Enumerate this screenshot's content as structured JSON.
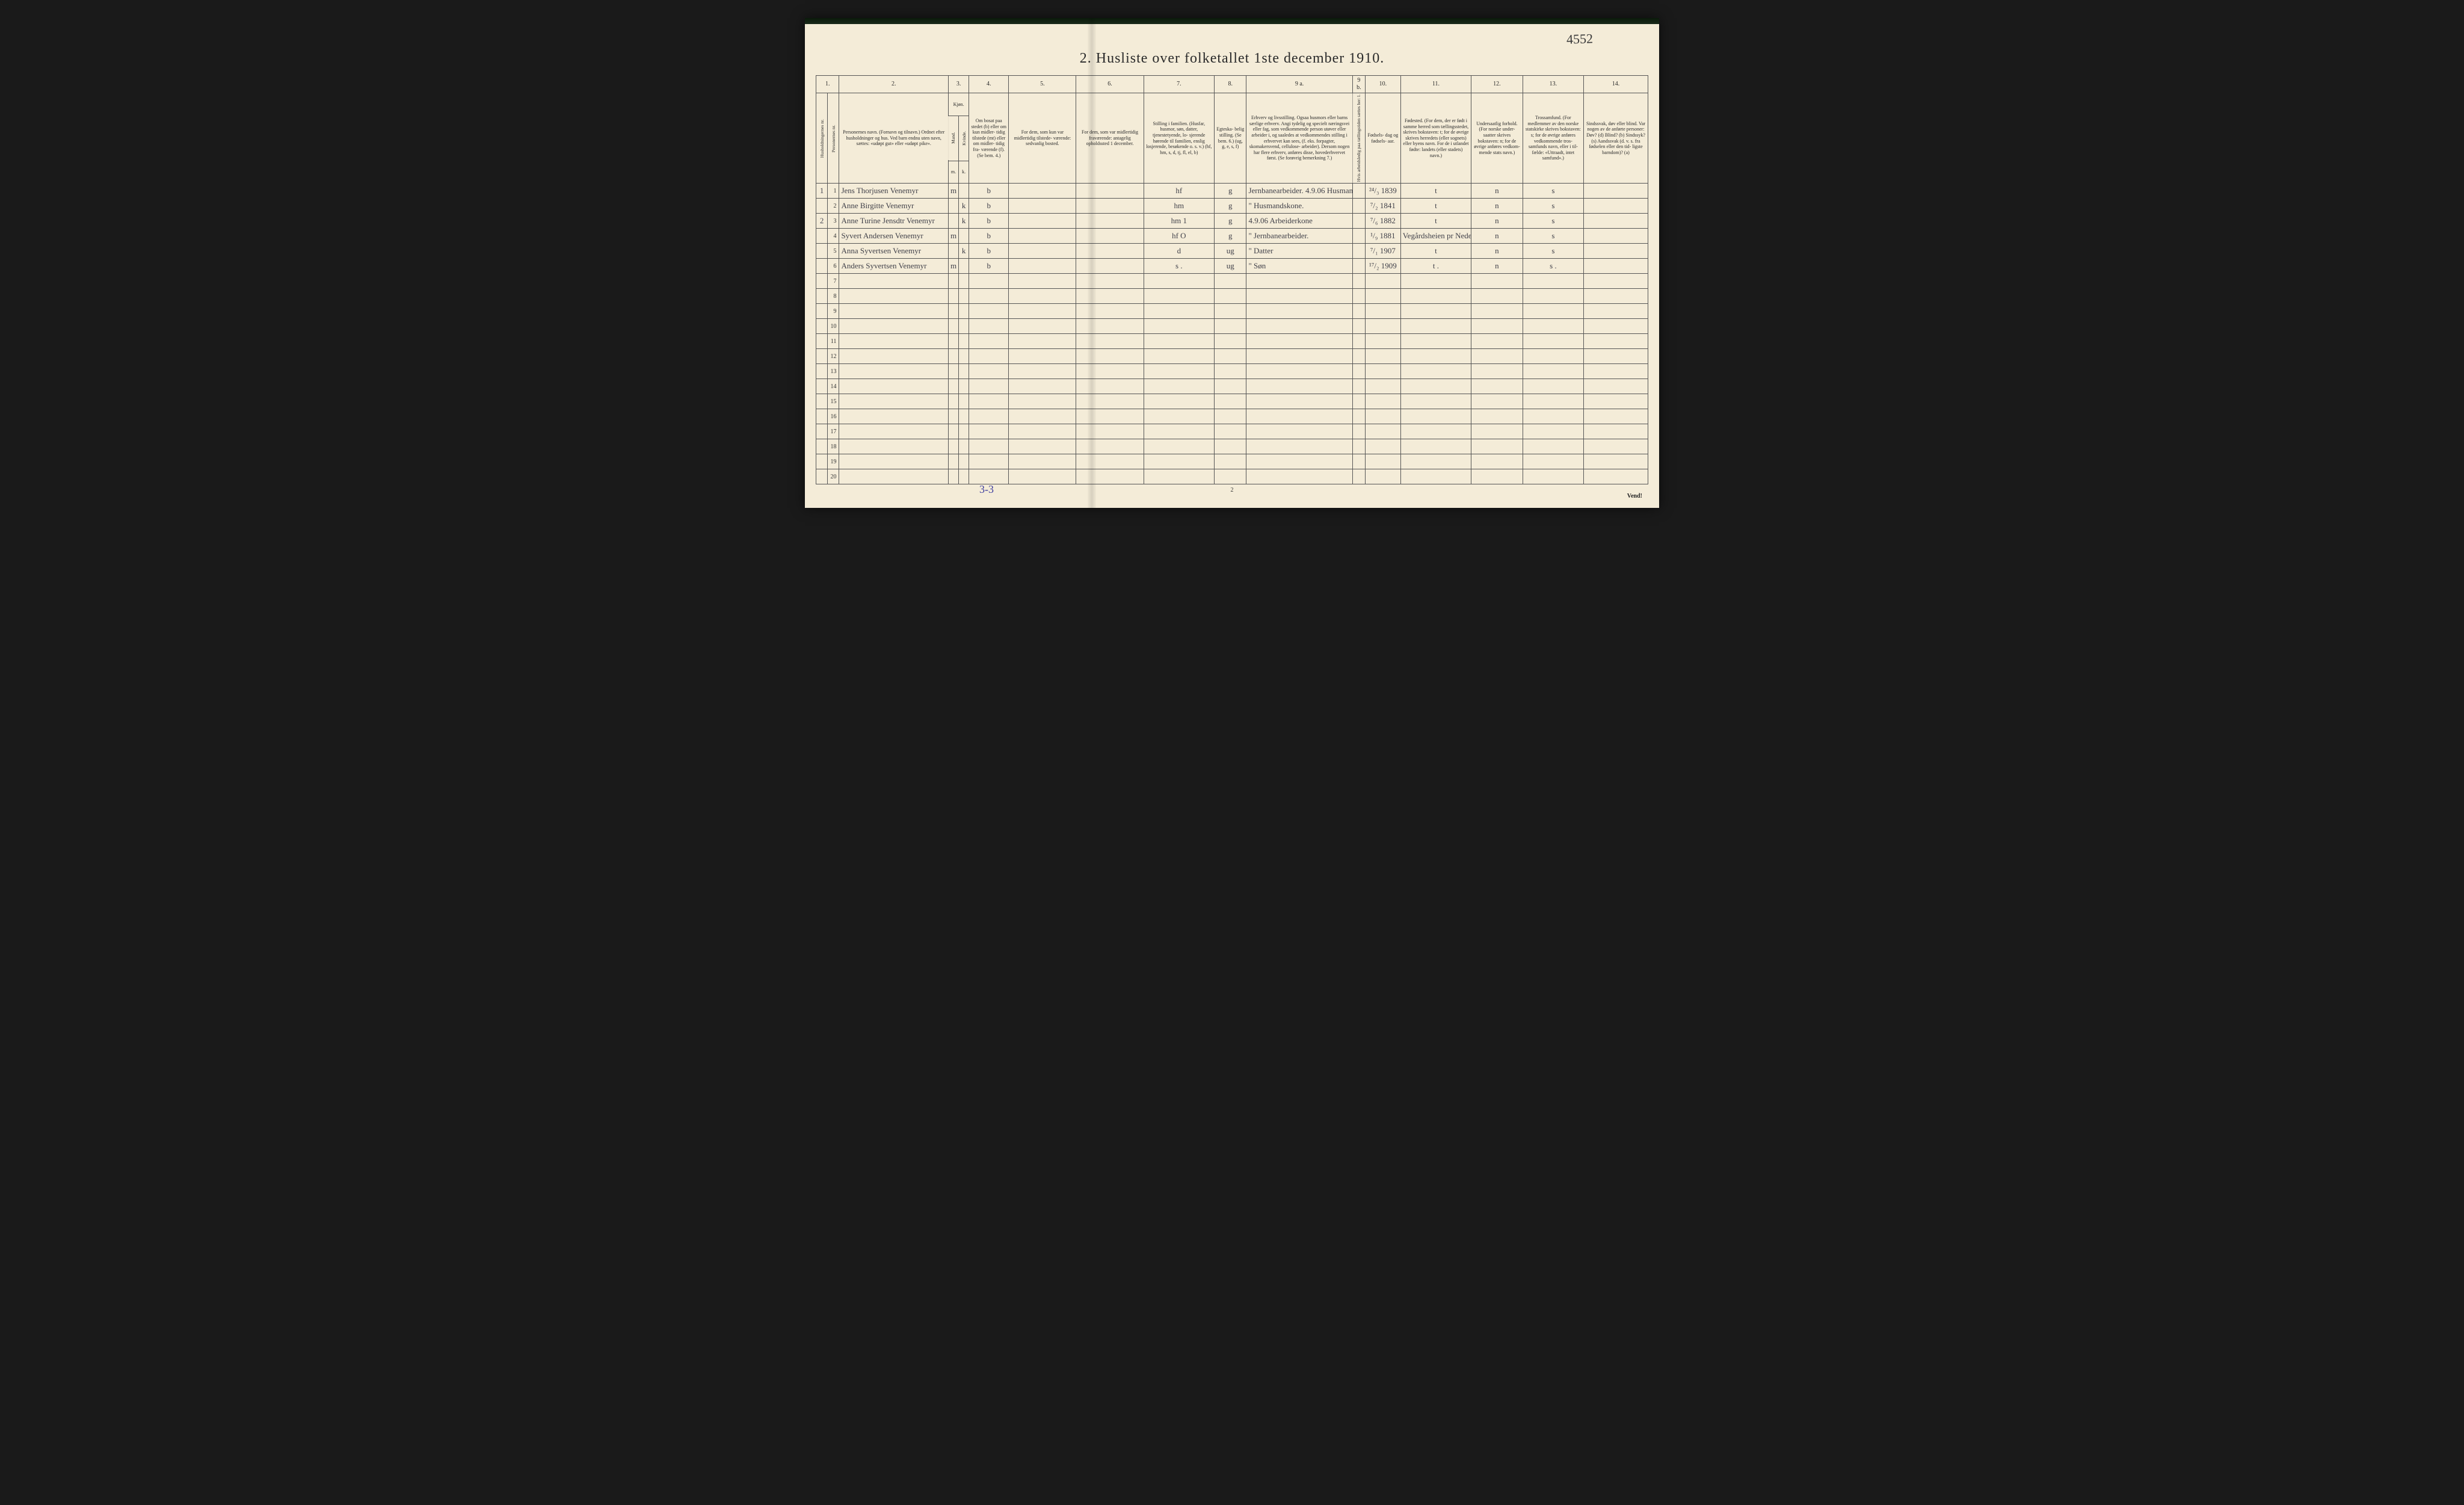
{
  "annotations": {
    "top_right_handwritten": "4552",
    "bottom_left_handwritten": "3-3",
    "footer_page_number": "2",
    "vend_label": "Vend!"
  },
  "title": "2.  Husliste over folketallet 1ste december 1910.",
  "columns": {
    "top_numbers": [
      "1.",
      "2.",
      "3.",
      "4.",
      "5.",
      "6.",
      "7.",
      "8.",
      "9 a.",
      "9 b.",
      "10.",
      "11.",
      "12.",
      "13.",
      "14."
    ],
    "c1a": "Husholdningernes nr.",
    "c1b": "Personernes nr.",
    "c2": "Personernes navn.\n(Fornavn og tilnavn.)\nOrdnet efter husholdninger og hus.\nVed barn endnu uten navn, sættes: «udøpt gut» eller «udøpt pike».",
    "c3_top": "Kjøn.",
    "c3a": "Mand.",
    "c3b": "Kvinde.",
    "c3_bot_m": "m.",
    "c3_bot_k": "k.",
    "c4": "Om bosat paa stedet (b) eller om kun midler- tidig tilstede (mt) eller om midler- tidig fra- værende (f).\n(Se bem. 4.)",
    "c5": "For dem, som kun var midlertidig tilstede- værende:\n\nsedvanlig bosted.",
    "c6": "For dem, som var midlertidig fraværende:\n\nantagelig opholdssted 1 december.",
    "c7": "Stilling i familien.\n(Husfar, husmor, søn, datter, tjenestetyende, lo- sjerende hørende til familien, enslig losjerende, besøkende o. s. v.)\n(hf, hm, s, d, tj, fl, el, b)",
    "c8": "Egteska- belig stilling.\n(Se bem. 6.)\n(ug, g, e, s, f)",
    "c9a": "Erhverv og livsstilling.\nOgsaa husmors eller barns særlige erhverv.\nAngi tydelig og specielt næringsvei eller fag, som vedkommende person utøver eller arbeider i, og saaledes at vedkommendes stilling i erhvervet kan sees, (f. eks. forpagter, skomakersvend, cellulose- arbeider). Dersom nogen har flere erhverv, anføres disse, hovederhvervet først.\n(Se forøvrig bemerkning 7.)",
    "c9b": "Hvis arbeidsledig paa tællingstiden sættes her: l.",
    "c10": "Fødsels- dag og fødsels- aar.",
    "c11": "Fødested.\n(For dem, der er født i samme herred som tællingsstedet, skrives bokstaven: t; for de øvrige skrives herredets (eller sognets) eller byens navn. For de i utlandet fødte: landets (eller stadets) navn.)",
    "c12": "Undersaatlig forhold.\n(For norske under- saatter skrives bokstaven: n; for de øvrige anføres vedkom- mende stats navn.)",
    "c13": "Trossamfund.\n(For medlemmer av den norske statskirke skrives bokstaven: s; for de øvrige anføres vedkommende tros- samfunds navn, eller i til- fælde: «Uttraadt, intet samfund».)",
    "c14": "Sindssvak, døv eller blind.\nVar nogen av de anførte personer:\nDøv? (d)\nBlind? (b)\nSindssyk? (s)\nAandssvak (d. v. s. fra fødselen eller den tid- ligste barndom)? (a)"
  },
  "rows": [
    {
      "hh": "1",
      "pn": "1",
      "name": "Jens Thorjusen Venemyr",
      "m": "m",
      "k": "",
      "res": "b",
      "temp": "",
      "absent": "",
      "fam": "hf",
      "mar": "g",
      "occ": "Jernbanearbeider.\n4.9.06 Husmand",
      "dob": "²⁴/₃ 1839",
      "birthplace": "t",
      "nat": "n",
      "rel": "s",
      "dis": ""
    },
    {
      "hh": "",
      "pn": "2",
      "name": "Anne Birgitte Venemyr",
      "m": "",
      "k": "k",
      "res": "b",
      "temp": "",
      "absent": "",
      "fam": "hm",
      "mar": "g",
      "occ": "\"  Husmandskone.",
      "dob": "⁷/₂ 1841",
      "birthplace": "t",
      "nat": "n",
      "rel": "s",
      "dis": ""
    },
    {
      "hh": "2",
      "pn": "3",
      "name": "Anne Turine Jensdtr Venemyr",
      "m": "",
      "k": "k",
      "res": "b",
      "temp": "",
      "absent": "",
      "fam": "hm 1",
      "mar": "g",
      "occ": "4.9.06  Arbeiderkone",
      "dob": "⁷/₆ 1882",
      "birthplace": "t",
      "nat": "n",
      "rel": "s",
      "dis": ""
    },
    {
      "hh": "",
      "pn": "4",
      "name": "Syvert Andersen Venemyr",
      "m": "m",
      "k": "",
      "res": "b",
      "temp": "",
      "absent": "",
      "fam": "hf  O",
      "mar": "g",
      "occ": "\"   Jernbanearbeider.",
      "dob": "¹/₉ 1881",
      "birthplace": "Vegårdsheien pr Nedenes",
      "nat": "n",
      "rel": "s",
      "dis": ""
    },
    {
      "hh": "",
      "pn": "5",
      "name": "Anna Syvertsen Venemyr",
      "m": "",
      "k": "k",
      "res": "b",
      "temp": "",
      "absent": "",
      "fam": "d",
      "mar": "ug",
      "occ": "\"     Datter",
      "dob": "⁷/₁ 1907",
      "birthplace": "t",
      "nat": "n",
      "rel": "s",
      "dis": ""
    },
    {
      "hh": "",
      "pn": "6",
      "name": "Anders Syvertsen Venemyr",
      "m": "m",
      "k": "",
      "res": "b",
      "temp": "",
      "absent": "",
      "fam": "s   .",
      "mar": "ug",
      "occ": "\"       Søn",
      "dob": "¹⁷/₂ 1909",
      "birthplace": "t  .",
      "nat": "n",
      "rel": "s .",
      "dis": ""
    }
  ],
  "row_numbers_total": 20,
  "style": {
    "page_bg": "#f4ecd8",
    "ink": "#2a2a2a",
    "border": "#555",
    "handwriting": "#3f3f48",
    "blue_pencil": "#4040a0"
  }
}
